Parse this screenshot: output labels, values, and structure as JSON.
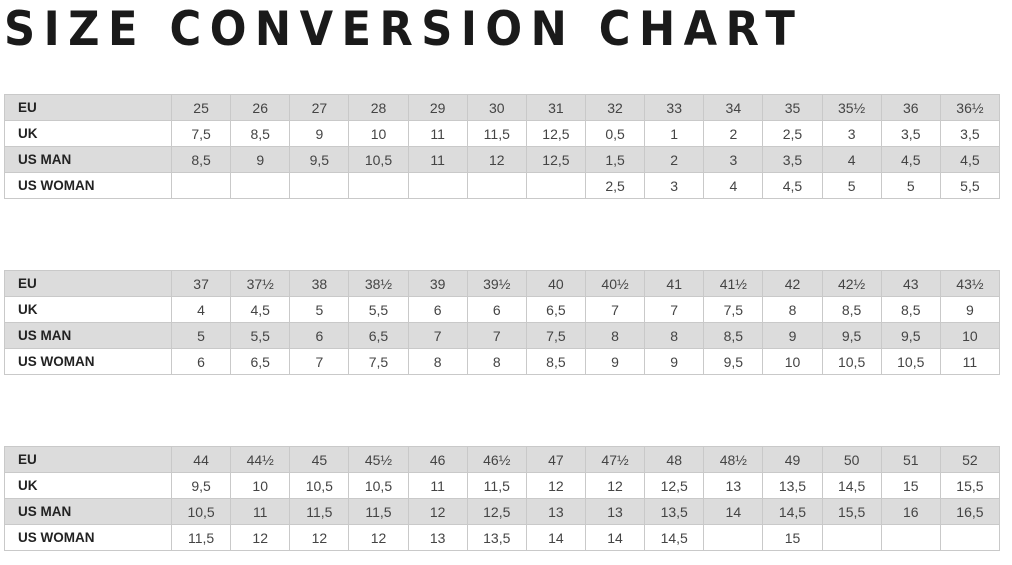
{
  "title": "SIZE CONVERSION CHART",
  "row_labels": [
    "EU",
    "UK",
    "US MAN",
    "US WOMAN"
  ],
  "colors": {
    "shaded_row": "#dcdcdc",
    "border": "#c9c9c9"
  },
  "tables": [
    {
      "eu": [
        "25",
        "26",
        "27",
        "28",
        "29",
        "30",
        "31",
        "32",
        "33",
        "34",
        "35",
        "35½",
        "36",
        "36½"
      ],
      "uk": [
        "7,5",
        "8,5",
        "9",
        "10",
        "11",
        "11,5",
        "12,5",
        "0,5",
        "1",
        "2",
        "2,5",
        "3",
        "3,5",
        "3,5"
      ],
      "us_man": [
        "8,5",
        "9",
        "9,5",
        "10,5",
        "11",
        "12",
        "12,5",
        "1,5",
        "2",
        "3",
        "3,5",
        "4",
        "4,5",
        "4,5"
      ],
      "us_woman": [
        "",
        "",
        "",
        "",
        "",
        "",
        "",
        "2,5",
        "3",
        "4",
        "4,5",
        "5",
        "5",
        "5,5"
      ]
    },
    {
      "eu": [
        "37",
        "37½",
        "38",
        "38½",
        "39",
        "39½",
        "40",
        "40½",
        "41",
        "41½",
        "42",
        "42½",
        "43",
        "43½"
      ],
      "uk": [
        "4",
        "4,5",
        "5",
        "5,5",
        "6",
        "6",
        "6,5",
        "7",
        "7",
        "7,5",
        "8",
        "8,5",
        "8,5",
        "9"
      ],
      "us_man": [
        "5",
        "5,5",
        "6",
        "6,5",
        "7",
        "7",
        "7,5",
        "8",
        "8",
        "8,5",
        "9",
        "9,5",
        "9,5",
        "10"
      ],
      "us_woman": [
        "6",
        "6,5",
        "7",
        "7,5",
        "8",
        "8",
        "8,5",
        "9",
        "9",
        "9,5",
        "10",
        "10,5",
        "10,5",
        "11"
      ]
    },
    {
      "eu": [
        "44",
        "44½",
        "45",
        "45½",
        "46",
        "46½",
        "47",
        "47½",
        "48",
        "48½",
        "49",
        "50",
        "51",
        "52"
      ],
      "uk": [
        "9,5",
        "10",
        "10,5",
        "10,5",
        "11",
        "11,5",
        "12",
        "12",
        "12,5",
        "13",
        "13,5",
        "14,5",
        "15",
        "15,5"
      ],
      "us_man": [
        "10,5",
        "11",
        "11,5",
        "11,5",
        "12",
        "12,5",
        "13",
        "13",
        "13,5",
        "14",
        "14,5",
        "15,5",
        "16",
        "16,5"
      ],
      "us_woman": [
        "11,5",
        "12",
        "12",
        "12",
        "13",
        "13,5",
        "14",
        "14",
        "14,5",
        "",
        "15",
        "",
        "",
        ""
      ]
    }
  ]
}
